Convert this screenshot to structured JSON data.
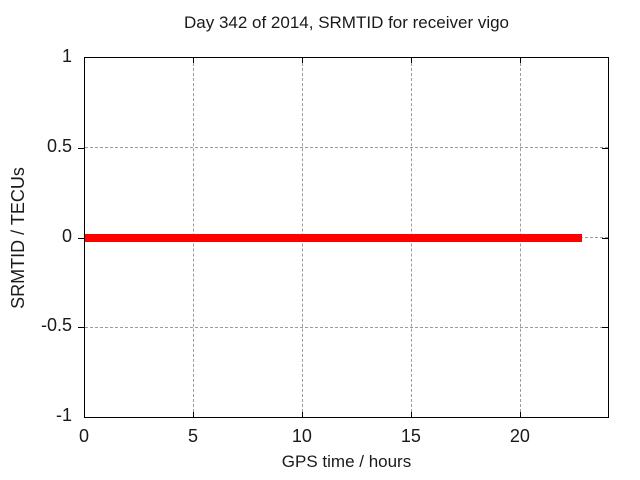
{
  "page": {
    "background": "#ffffff"
  },
  "chart_data": {
    "type": "line",
    "title": "Day 342 of 2014, SRMTID for receiver vigo",
    "xlabel": "GPS time / hours",
    "ylabel": "SRMTID / TECUs",
    "xlim": [
      0,
      24
    ],
    "ylim": [
      -1,
      1
    ],
    "xticks": [
      0,
      5,
      10,
      15,
      20
    ],
    "yticks": [
      -1,
      -0.5,
      0,
      0.5,
      1
    ],
    "grid": true,
    "grid_style": "dashed",
    "grid_color": "#9c9c9c",
    "axis_color": "#000000",
    "text_color": "#1a1a1a",
    "legend_position": "none",
    "series": [
      {
        "name": "SRMTID",
        "color": "#ff0000",
        "linewidth": 8,
        "x": [
          0,
          22.8
        ],
        "y": [
          0,
          0
        ]
      }
    ]
  }
}
